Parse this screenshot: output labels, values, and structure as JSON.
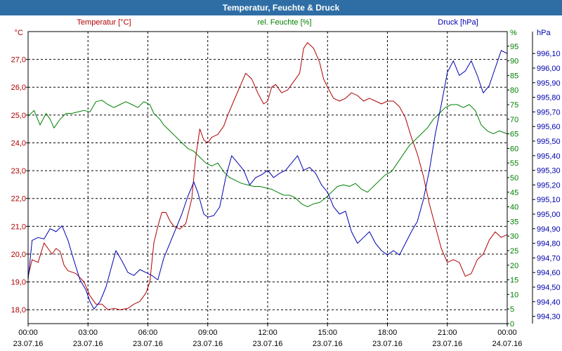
{
  "title": "Temperatur, Feuchte & Druck",
  "chart_data": {
    "type": "line",
    "x_ticks": [
      {
        "time": "00:00",
        "date": "23.07.16"
      },
      {
        "time": "03:00",
        "date": "23.07.16"
      },
      {
        "time": "06:00",
        "date": "23.07.16"
      },
      {
        "time": "09:00",
        "date": "23.07.16"
      },
      {
        "time": "12:00",
        "date": "23.07.16"
      },
      {
        "time": "15:00",
        "date": "23.07.16"
      },
      {
        "time": "18:00",
        "date": "23.07.16"
      },
      {
        "time": "21:00",
        "date": "23.07.16"
      },
      {
        "time": "00:00",
        "date": "24.07.16"
      }
    ],
    "xlim_hours": [
      0,
      24
    ],
    "grid": true,
    "axes": {
      "temp": {
        "label": "Temperatur [°C]",
        "unit": "°C",
        "range": [
          17.5,
          28.0
        ],
        "ticks": [
          "18,0",
          "19,0",
          "20,0",
          "21,0",
          "22,0",
          "23,0",
          "24,0",
          "25,0",
          "26,0",
          "27,0"
        ],
        "tick_values": [
          18,
          19,
          20,
          21,
          22,
          23,
          24,
          25,
          26,
          27
        ],
        "color": "#b00000"
      },
      "hum": {
        "label": "rel. Feuchte [%]",
        "unit": "%",
        "range": [
          0,
          100
        ],
        "ticks": [
          "0",
          "5",
          "10",
          "15",
          "20",
          "25",
          "30",
          "35",
          "40",
          "45",
          "50",
          "55",
          "60",
          "65",
          "70",
          "75",
          "80",
          "85",
          "90",
          "95"
        ],
        "tick_values": [
          0,
          5,
          10,
          15,
          20,
          25,
          30,
          35,
          40,
          45,
          50,
          55,
          60,
          65,
          70,
          75,
          80,
          85,
          90,
          95
        ],
        "color": "#008000"
      },
      "press": {
        "label": "Druck [hPa]",
        "unit": "hPa",
        "range": [
          994.25,
          996.25
        ],
        "ticks": [
          "994,30",
          "994,40",
          "994,50",
          "994,60",
          "994,70",
          "994,80",
          "994,90",
          "995,00",
          "995,10",
          "995,20",
          "995,30",
          "995,40",
          "995,50",
          "995,60",
          "995,70",
          "995,80",
          "995,90",
          "996,00",
          "996,10"
        ],
        "tick_values": [
          994.3,
          994.4,
          994.5,
          994.6,
          994.7,
          994.8,
          994.9,
          995.0,
          995.1,
          995.2,
          995.3,
          995.4,
          995.5,
          995.6,
          995.7,
          995.8,
          995.9,
          996.0,
          996.1
        ],
        "color": "#0000b0"
      }
    },
    "series": [
      {
        "name": "Temperatur [°C]",
        "axis": "temp",
        "color": "#b00000",
        "points": [
          [
            0,
            19.2
          ],
          [
            0.2,
            19.8
          ],
          [
            0.5,
            19.7
          ],
          [
            0.8,
            20.4
          ],
          [
            1.0,
            20.2
          ],
          [
            1.2,
            20.0
          ],
          [
            1.4,
            20.2
          ],
          [
            1.6,
            20.1
          ],
          [
            1.8,
            19.6
          ],
          [
            2.0,
            19.4
          ],
          [
            2.4,
            19.3
          ],
          [
            2.8,
            19.0
          ],
          [
            3.1,
            18.5
          ],
          [
            3.4,
            18.2
          ],
          [
            3.7,
            18.2
          ],
          [
            4.0,
            18.0
          ],
          [
            4.3,
            18.05
          ],
          [
            4.6,
            18.0
          ],
          [
            5.0,
            18.05
          ],
          [
            5.3,
            18.2
          ],
          [
            5.6,
            18.3
          ],
          [
            5.9,
            18.6
          ],
          [
            6.1,
            19.0
          ],
          [
            6.3,
            20.4
          ],
          [
            6.5,
            21.0
          ],
          [
            6.7,
            21.5
          ],
          [
            6.9,
            21.5
          ],
          [
            7.1,
            21.2
          ],
          [
            7.3,
            21.0
          ],
          [
            7.6,
            20.9
          ],
          [
            7.9,
            21.1
          ],
          [
            8.2,
            22.0
          ],
          [
            8.4,
            23.5
          ],
          [
            8.6,
            24.5
          ],
          [
            8.8,
            24.1
          ],
          [
            9.0,
            24.0
          ],
          [
            9.2,
            24.2
          ],
          [
            9.5,
            24.3
          ],
          [
            9.8,
            24.6
          ],
          [
            10.0,
            25.0
          ],
          [
            10.3,
            25.5
          ],
          [
            10.6,
            26.0
          ],
          [
            10.9,
            26.5
          ],
          [
            11.2,
            26.3
          ],
          [
            11.5,
            25.8
          ],
          [
            11.8,
            25.4
          ],
          [
            12.0,
            25.5
          ],
          [
            12.2,
            26.0
          ],
          [
            12.4,
            26.1
          ],
          [
            12.7,
            25.8
          ],
          [
            13.0,
            25.9
          ],
          [
            13.2,
            26.1
          ],
          [
            13.4,
            26.3
          ],
          [
            13.6,
            26.5
          ],
          [
            13.8,
            27.4
          ],
          [
            14.0,
            27.6
          ],
          [
            14.3,
            27.4
          ],
          [
            14.6,
            26.9
          ],
          [
            14.8,
            26.3
          ],
          [
            15.0,
            26.0
          ],
          [
            15.3,
            25.6
          ],
          [
            15.6,
            25.5
          ],
          [
            15.9,
            25.6
          ],
          [
            16.2,
            25.8
          ],
          [
            16.5,
            25.7
          ],
          [
            16.8,
            25.5
          ],
          [
            17.1,
            25.6
          ],
          [
            17.4,
            25.5
          ],
          [
            17.7,
            25.4
          ],
          [
            18.0,
            25.5
          ],
          [
            18.3,
            25.5
          ],
          [
            18.6,
            25.3
          ],
          [
            18.9,
            24.9
          ],
          [
            19.2,
            24.2
          ],
          [
            19.5,
            23.6
          ],
          [
            19.8,
            22.8
          ],
          [
            20.1,
            21.8
          ],
          [
            20.4,
            21.0
          ],
          [
            20.7,
            20.2
          ],
          [
            21.0,
            19.7
          ],
          [
            21.3,
            19.8
          ],
          [
            21.6,
            19.7
          ],
          [
            21.9,
            19.2
          ],
          [
            22.2,
            19.3
          ],
          [
            22.5,
            19.8
          ],
          [
            22.8,
            20.0
          ],
          [
            23.1,
            20.5
          ],
          [
            23.4,
            20.8
          ],
          [
            23.7,
            20.6
          ],
          [
            24.0,
            20.7
          ]
        ]
      },
      {
        "name": "rel. Feuchte [%]",
        "axis": "hum",
        "color": "#008000",
        "points": [
          [
            0,
            71
          ],
          [
            0.3,
            73
          ],
          [
            0.6,
            68
          ],
          [
            0.9,
            72
          ],
          [
            1.1,
            70
          ],
          [
            1.3,
            67
          ],
          [
            1.6,
            70
          ],
          [
            1.9,
            72
          ],
          [
            2.2,
            72
          ],
          [
            2.5,
            72.5
          ],
          [
            2.8,
            73
          ],
          [
            3.1,
            72.5
          ],
          [
            3.4,
            76
          ],
          [
            3.7,
            76.5
          ],
          [
            4.0,
            75
          ],
          [
            4.3,
            74
          ],
          [
            4.6,
            75
          ],
          [
            4.9,
            76
          ],
          [
            5.2,
            75
          ],
          [
            5.5,
            74
          ],
          [
            5.8,
            76
          ],
          [
            6.1,
            75
          ],
          [
            6.3,
            72
          ],
          [
            6.6,
            70
          ],
          [
            6.8,
            68
          ],
          [
            7.1,
            66
          ],
          [
            7.4,
            64
          ],
          [
            7.7,
            62
          ],
          [
            8.0,
            60
          ],
          [
            8.3,
            59
          ],
          [
            8.6,
            57
          ],
          [
            8.9,
            55
          ],
          [
            9.2,
            54
          ],
          [
            9.5,
            55
          ],
          [
            9.8,
            52
          ],
          [
            10.1,
            50
          ],
          [
            10.4,
            49
          ],
          [
            10.7,
            48
          ],
          [
            11.0,
            47.5
          ],
          [
            11.3,
            47
          ],
          [
            11.6,
            47
          ],
          [
            11.9,
            46.5
          ],
          [
            12.2,
            46
          ],
          [
            12.5,
            45
          ],
          [
            12.8,
            44
          ],
          [
            13.1,
            44
          ],
          [
            13.4,
            43
          ],
          [
            13.7,
            41
          ],
          [
            14.0,
            40
          ],
          [
            14.3,
            41
          ],
          [
            14.6,
            41.5
          ],
          [
            14.9,
            43
          ],
          [
            15.2,
            45
          ],
          [
            15.5,
            47
          ],
          [
            15.8,
            47.5
          ],
          [
            16.1,
            47
          ],
          [
            16.4,
            48
          ],
          [
            16.7,
            46
          ],
          [
            17.0,
            45
          ],
          [
            17.3,
            47
          ],
          [
            17.6,
            49
          ],
          [
            17.9,
            51
          ],
          [
            18.2,
            52
          ],
          [
            18.5,
            55
          ],
          [
            18.8,
            58
          ],
          [
            19.1,
            61
          ],
          [
            19.4,
            63
          ],
          [
            19.7,
            65
          ],
          [
            20.0,
            67
          ],
          [
            20.3,
            70
          ],
          [
            20.6,
            72
          ],
          [
            20.9,
            74
          ],
          [
            21.2,
            75
          ],
          [
            21.5,
            75
          ],
          [
            21.8,
            74
          ],
          [
            22.1,
            75
          ],
          [
            22.4,
            73
          ],
          [
            22.7,
            68
          ],
          [
            23.0,
            66
          ],
          [
            23.3,
            65
          ],
          [
            23.6,
            66
          ],
          [
            24.0,
            65
          ]
        ]
      },
      {
        "name": "Druck [hPa]",
        "axis": "press",
        "color": "#0000b0",
        "points": [
          [
            0,
            994.55
          ],
          [
            0.2,
            994.82
          ],
          [
            0.5,
            994.84
          ],
          [
            0.8,
            994.83
          ],
          [
            1.1,
            994.9
          ],
          [
            1.4,
            994.88
          ],
          [
            1.7,
            994.92
          ],
          [
            2.0,
            994.82
          ],
          [
            2.3,
            994.68
          ],
          [
            2.6,
            994.55
          ],
          [
            2.9,
            994.48
          ],
          [
            3.1,
            994.4
          ],
          [
            3.3,
            994.35
          ],
          [
            3.6,
            994.4
          ],
          [
            3.9,
            994.5
          ],
          [
            4.1,
            994.6
          ],
          [
            4.4,
            994.75
          ],
          [
            4.7,
            994.68
          ],
          [
            5.0,
            994.6
          ],
          [
            5.3,
            994.58
          ],
          [
            5.6,
            994.62
          ],
          [
            5.9,
            994.6
          ],
          [
            6.2,
            994.58
          ],
          [
            6.5,
            994.55
          ],
          [
            6.8,
            994.7
          ],
          [
            7.1,
            994.8
          ],
          [
            7.4,
            994.9
          ],
          [
            7.7,
            995.0
          ],
          [
            8.0,
            995.12
          ],
          [
            8.3,
            995.22
          ],
          [
            8.5,
            995.15
          ],
          [
            8.8,
            995.0
          ],
          [
            9.0,
            994.98
          ],
          [
            9.3,
            994.99
          ],
          [
            9.6,
            995.05
          ],
          [
            9.9,
            995.25
          ],
          [
            10.2,
            995.4
          ],
          [
            10.5,
            995.35
          ],
          [
            10.8,
            995.3
          ],
          [
            11.1,
            995.2
          ],
          [
            11.4,
            995.25
          ],
          [
            11.7,
            995.27
          ],
          [
            12.0,
            995.3
          ],
          [
            12.3,
            995.25
          ],
          [
            12.6,
            995.28
          ],
          [
            12.9,
            995.3
          ],
          [
            13.2,
            995.35
          ],
          [
            13.5,
            995.4
          ],
          [
            13.8,
            995.3
          ],
          [
            14.1,
            995.32
          ],
          [
            14.4,
            995.28
          ],
          [
            14.7,
            995.2
          ],
          [
            15.0,
            995.15
          ],
          [
            15.3,
            995.05
          ],
          [
            15.6,
            995.0
          ],
          [
            15.9,
            995.02
          ],
          [
            16.2,
            994.88
          ],
          [
            16.5,
            994.8
          ],
          [
            16.8,
            994.84
          ],
          [
            17.1,
            994.88
          ],
          [
            17.4,
            994.8
          ],
          [
            17.7,
            994.75
          ],
          [
            18.0,
            994.72
          ],
          [
            18.3,
            994.75
          ],
          [
            18.6,
            994.72
          ],
          [
            18.9,
            994.8
          ],
          [
            19.2,
            994.88
          ],
          [
            19.5,
            994.95
          ],
          [
            19.8,
            995.1
          ],
          [
            20.1,
            995.3
          ],
          [
            20.4,
            995.55
          ],
          [
            20.7,
            995.75
          ],
          [
            21.0,
            995.97
          ],
          [
            21.3,
            996.05
          ],
          [
            21.6,
            995.95
          ],
          [
            21.9,
            995.98
          ],
          [
            22.2,
            996.05
          ],
          [
            22.5,
            995.95
          ],
          [
            22.8,
            995.83
          ],
          [
            23.1,
            995.88
          ],
          [
            23.4,
            996.0
          ],
          [
            23.7,
            996.12
          ],
          [
            24.0,
            996.1
          ]
        ]
      }
    ]
  }
}
